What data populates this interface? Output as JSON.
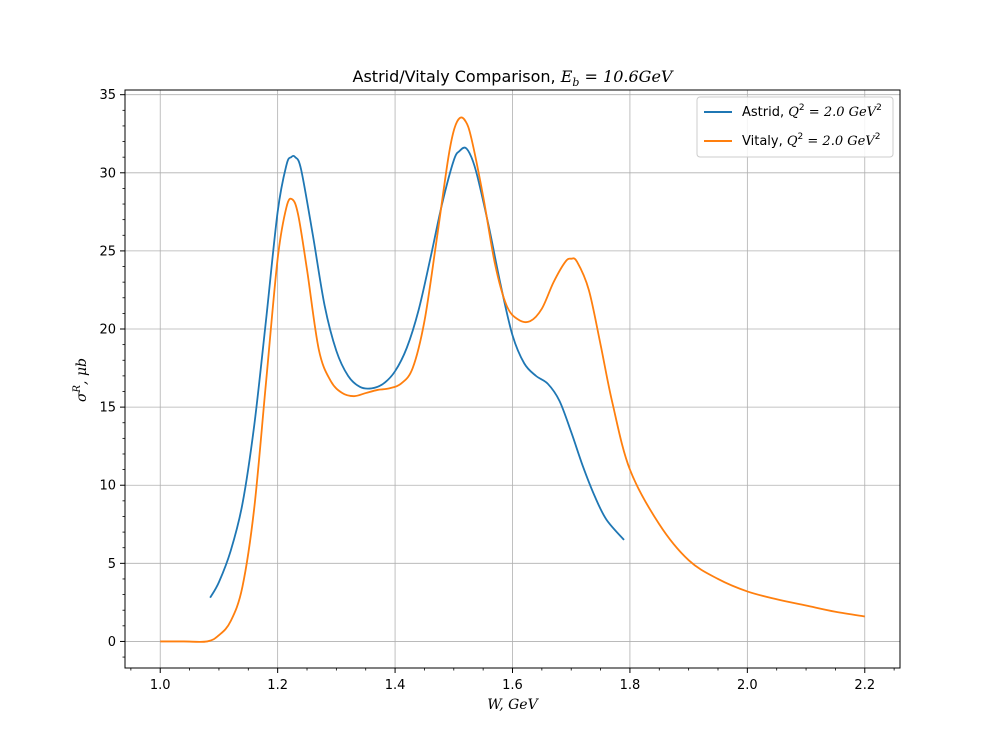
{
  "chart_data": {
    "type": "line",
    "title": "Astrid/Vitaly Comparison, E_b = 10.6GeV",
    "title_parts": {
      "lead": "Astrid/Vitaly Comparison, ",
      "sym": "E",
      "sub": "b",
      "tail": " = 10.6GeV"
    },
    "xlabel": "W, GeV",
    "ylabel": "σ^R, μb",
    "ylabel_parts": {
      "sym": "σ",
      "sup": "R",
      "tail": ", μb"
    },
    "xlim": [
      0.94,
      2.26
    ],
    "ylim": [
      -1.7,
      35.3
    ],
    "x_ticks": [
      1.0,
      1.2,
      1.4,
      1.6,
      1.8,
      2.0,
      2.2
    ],
    "x_tick_labels": [
      "1.0",
      "1.2",
      "1.4",
      "1.6",
      "1.8",
      "2.0",
      "2.2"
    ],
    "y_ticks": [
      0,
      5,
      10,
      15,
      20,
      25,
      30,
      35
    ],
    "y_tick_labels": [
      "0",
      "5",
      "10",
      "15",
      "20",
      "25",
      "30",
      "35"
    ],
    "grid": true,
    "legend_position": "top-right",
    "series": [
      {
        "name": "Astrid, Q^2 = 2.0 GeV^2",
        "legend_parts": {
          "lead": "Astrid, ",
          "sym": "Q",
          "sup": "2",
          "mid": " = 2.0 GeV",
          "sup2": "2"
        },
        "color": "#1f77b4",
        "x": [
          1.085,
          1.1,
          1.12,
          1.14,
          1.16,
          1.18,
          1.2,
          1.215,
          1.223,
          1.23,
          1.24,
          1.26,
          1.28,
          1.3,
          1.32,
          1.34,
          1.36,
          1.38,
          1.4,
          1.42,
          1.44,
          1.46,
          1.48,
          1.5,
          1.51,
          1.52,
          1.53,
          1.54,
          1.56,
          1.58,
          1.6,
          1.62,
          1.64,
          1.66,
          1.68,
          1.7,
          1.72,
          1.74,
          1.76,
          1.79
        ],
        "y": [
          2.8,
          3.8,
          5.8,
          8.8,
          13.8,
          20.5,
          27.5,
          30.5,
          31.0,
          31.0,
          30.2,
          26.0,
          21.5,
          18.6,
          17.0,
          16.3,
          16.2,
          16.5,
          17.3,
          18.8,
          21.2,
          24.5,
          28.0,
          30.8,
          31.4,
          31.6,
          31.0,
          29.8,
          26.5,
          22.8,
          19.6,
          17.8,
          17.0,
          16.5,
          15.4,
          13.4,
          11.2,
          9.3,
          7.8,
          6.5
        ]
      },
      {
        "name": "Vitaly, Q^2 = 2.0 GeV^2",
        "legend_parts": {
          "lead": "Vitaly, ",
          "sym": "Q",
          "sup": "2",
          "mid": " = 2.0 GeV",
          "sup2": "2"
        },
        "color": "#ff7f0e",
        "x": [
          1.0,
          1.04,
          1.08,
          1.1,
          1.12,
          1.14,
          1.16,
          1.18,
          1.2,
          1.215,
          1.225,
          1.235,
          1.25,
          1.27,
          1.29,
          1.31,
          1.33,
          1.35,
          1.37,
          1.39,
          1.41,
          1.43,
          1.45,
          1.47,
          1.49,
          1.5,
          1.51,
          1.52,
          1.53,
          1.55,
          1.57,
          1.59,
          1.61,
          1.63,
          1.65,
          1.67,
          1.69,
          1.7,
          1.71,
          1.73,
          1.75,
          1.77,
          1.8,
          1.85,
          1.9,
          1.95,
          2.0,
          2.05,
          2.1,
          2.15,
          2.2
        ],
        "y": [
          0.0,
          0.0,
          0.0,
          0.4,
          1.3,
          3.5,
          8.5,
          16.5,
          24.5,
          27.8,
          28.3,
          27.3,
          23.8,
          18.7,
          16.7,
          15.9,
          15.7,
          15.9,
          16.1,
          16.2,
          16.5,
          17.5,
          20.5,
          25.5,
          30.8,
          32.7,
          33.5,
          33.3,
          32.2,
          28.5,
          24.2,
          21.5,
          20.6,
          20.5,
          21.3,
          23.0,
          24.3,
          24.5,
          24.3,
          22.5,
          19.0,
          15.3,
          11.0,
          7.5,
          5.2,
          4.0,
          3.2,
          2.7,
          2.3,
          1.9,
          1.6
        ]
      }
    ]
  }
}
